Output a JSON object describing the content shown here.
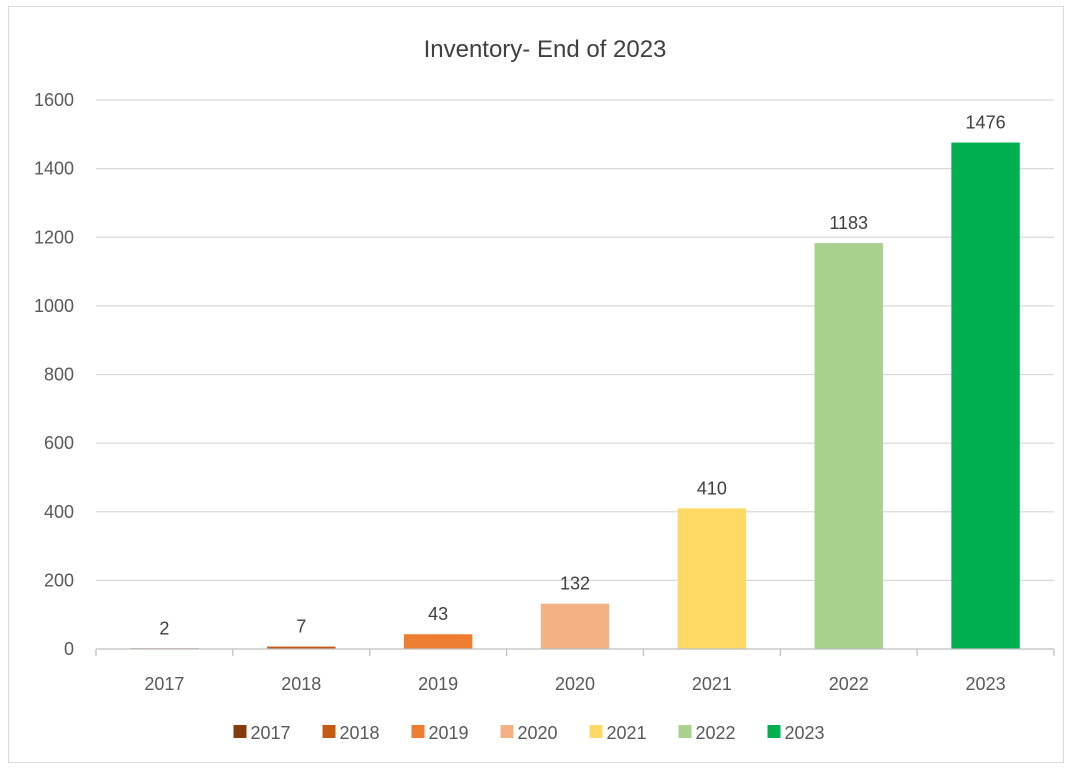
{
  "chart_data": {
    "type": "bar",
    "title": "Inventory- End of 2023",
    "xlabel": "",
    "ylabel": "",
    "categories": [
      "2017",
      "2018",
      "2019",
      "2020",
      "2021",
      "2022",
      "2023"
    ],
    "values": [
      2,
      7,
      43,
      132,
      410,
      1183,
      1476
    ],
    "colors": [
      "#843c0c",
      "#c55a11",
      "#ed7d31",
      "#f4b183",
      "#ffd966",
      "#a9d18e",
      "#00b050"
    ],
    "ylim": [
      0,
      1600
    ],
    "yticks": [
      0,
      200,
      400,
      600,
      800,
      1000,
      1200,
      1400,
      1600
    ],
    "grid": true,
    "legend": {
      "placement": "bottom",
      "entries": [
        "2017",
        "2018",
        "2019",
        "2020",
        "2021",
        "2022",
        "2023"
      ]
    }
  }
}
